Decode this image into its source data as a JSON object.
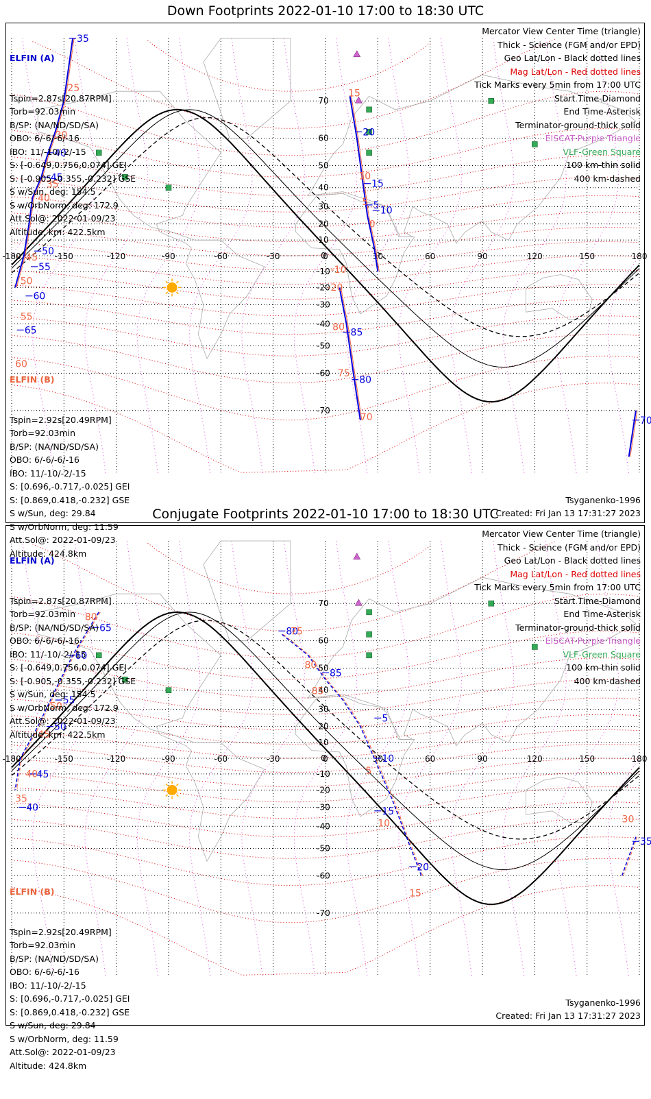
{
  "panels": [
    {
      "title": "Down Footprints 2022-01-10 17:00 to 18:30 UTC",
      "elfin_a": {
        "header": "ELFIN (A)",
        "lines": [
          "Tspin=2.87s[20.87RPM]",
          "Torb=92.03min",
          "B/SP: (NA/ND/SD/SA)",
          "OBO: 6/-6/-6/-16",
          "IBO: 11/-10/-2/-15",
          "S: [-0.649,0.756,0.074] GEI",
          "S: [-0.905,-0.355,-0.232] GSE",
          "S w/Sun, deg: 154.5",
          "S w/OrbNorm, deg: 172.9",
          "Att.Sol@: 2022-01-09/23",
          "Altitude, km: 422.5km"
        ]
      },
      "elfin_b": {
        "header": "ELFIN (B)",
        "lines": [
          "Tspin=2.92s[20.49RPM]",
          "Torb=92.03min",
          "B/SP: (NA/ND/SD/SA)",
          "OBO: 6/-6/-6/-16",
          "IBO: 11/-10/-2/-15",
          "S: [0.696,-0.717,-0.025] GEI",
          "S: [0.869,0.418,-0.232] GSE",
          "S w/Sun, deg: 29.84",
          "S w/OrbNorm, deg: 11.59",
          "Att.Sol@: 2022-01-09/23",
          "Altitude: 424.8km"
        ]
      },
      "footer_left": "Tsyganenko-1996",
      "footer_right": "Created: Fri Jan 13 17:31:27 2023"
    },
    {
      "title": "Conjugate Footprints 2022-01-10 17:00 to 18:30 UTC",
      "elfin_a": {
        "header": "ELFIN (A)",
        "lines": [
          "Tspin=2.87s[20.87RPM]",
          "Torb=92.03min",
          "B/SP: (NA/ND/SD/SA)",
          "OBO: 6/-6/-6/-16",
          "IBO: 11/-10/-2/-15",
          "S: [-0.649,0.756,0.074] GEI",
          "S: [-0.905,-0.355,-0.232] GSE",
          "S w/Sun, deg: 154.5",
          "S w/OrbNorm, deg: 172.9",
          "Att.Sol@: 2022-01-09/23",
          "Altitude, km: 422.5km"
        ]
      },
      "elfin_b": {
        "header": "ELFIN (B)",
        "lines": [
          "Tspin=2.92s[20.49RPM]",
          "Torb=92.03min",
          "B/SP: (NA/ND/SD/SA)",
          "OBO: 6/-6/-6/-16",
          "IBO: 11/-10/-2/-15",
          "S: [0.696,-0.717,-0.025] GEI",
          "S: [0.869,0.418,-0.232] GSE",
          "S w/Sun, deg: 29.84",
          "S w/OrbNorm, deg: 11.59",
          "Att.Sol@: 2022-01-09/23",
          "Altitude: 424.8km"
        ]
      },
      "footer_left": "Tsyganenko-1996",
      "footer_right": "Created: Fri Jan 13 17:31:27 2023"
    }
  ],
  "legend": [
    {
      "text": "Mercator View Center Time (triangle)",
      "color": "#000000"
    },
    {
      "text": "Thick - Science (FGM and/or EPD)",
      "color": "#000000"
    },
    {
      "text": "Geo Lat/Lon - Black dotted lines",
      "color": "#000000"
    },
    {
      "text": "Mag Lat/Lon - Red dotted lines",
      "color": "#dd0000"
    },
    {
      "text": "Tick Marks every 5min from 17:00 UTC",
      "color": "#000000"
    },
    {
      "text": "Start Time-Diamond",
      "color": "#000000"
    },
    {
      "text": "End Time-Asterisk",
      "color": "#000000"
    },
    {
      "text": "Terminator-ground-thick solid",
      "color": "#000000"
    },
    {
      "text": "EISCAT-Purple Triangle",
      "color": "#cc66cc"
    },
    {
      "text": "VLF-Green Square",
      "color": "#33aa55"
    },
    {
      "text": "100 km-thin solid",
      "color": "#000000"
    },
    {
      "text": "400 km-dashed",
      "color": "#000000"
    }
  ],
  "colors": {
    "elfin_a": "#0000dd",
    "elfin_b": "#ee6644",
    "mag_grid": "#dd0000",
    "eiscat": "#cc66cc",
    "vlf": "#33aa55",
    "geo_grid": "#000000",
    "sun": "#ffaa00"
  },
  "chart_data": [
    {
      "type": "line",
      "projection": "mercator",
      "x_ticks": [
        -180,
        -150,
        -120,
        -90,
        -60,
        -30,
        0,
        30,
        60,
        90,
        120,
        150,
        180
      ],
      "y_ticks": [
        -70,
        -60,
        -50,
        -40,
        -30,
        -20,
        -10,
        0,
        10,
        20,
        30,
        40,
        50,
        60,
        70
      ],
      "xlim": [
        -180,
        180
      ],
      "ylim": [
        -80,
        80
      ],
      "series": [
        {
          "name": "ELFIN (A)",
          "points": [
            [
              -145,
              80
            ],
            [
              -150,
              70
            ],
            [
              -155,
              62
            ],
            [
              -160,
              53
            ],
            [
              -163,
              45
            ],
            [
              -168,
              35
            ],
            [
              -170,
              20
            ],
            [
              -173,
              0
            ],
            [
              -178,
              -20
            ]
          ],
          "ticks": [
            {
              "label": "35",
              "lon": -145,
              "lat": 80
            },
            {
              "label": "40",
              "lon": -158,
              "lat": 55
            },
            {
              "label": "45",
              "lon": -160,
              "lat": 45
            },
            {
              "label": "50",
              "lon": -165,
              "lat": 3
            },
            {
              "label": "55",
              "lon": -167,
              "lat": -7
            },
            {
              "label": "60",
              "lon": -170,
              "lat": -25
            },
            {
              "label": "65",
              "lon": -175,
              "lat": -43
            }
          ]
        },
        {
          "name": "ELFIN (B)",
          "points": [
            [
              14,
              71
            ],
            [
              18,
              60
            ],
            [
              21,
              45
            ],
            [
              24,
              25
            ],
            [
              28,
              5
            ],
            [
              30,
              -10
            ]
          ],
          "ticks": [
            {
              "label": "5",
              "lon": 25,
              "lat": 31
            },
            {
              "label": "10",
              "lon": 29,
              "lat": 28
            },
            {
              "label": "15",
              "lon": 24,
              "lat": 42
            },
            {
              "label": "20",
              "lon": 19,
              "lat": 62
            }
          ]
        },
        {
          "name": "ELFIN (A) south",
          "points": [
            [
              8,
              -20
            ],
            [
              12,
              -40
            ],
            [
              16,
              -60
            ],
            [
              20,
              -72
            ]
          ],
          "ticks": [
            {
              "label": "85",
              "lon": 12,
              "lat": -44
            },
            {
              "label": "80",
              "lon": 17,
              "lat": -62
            }
          ]
        },
        {
          "name": "ELFIN (B) east",
          "points": [
            [
              174,
              -78
            ],
            [
              178,
              -70
            ]
          ],
          "ticks": [
            {
              "label": "70",
              "lon": 178,
              "lat": -72
            }
          ]
        }
      ],
      "mag_labels": [
        {
          "label": "15",
          "lon": 13,
          "lat": 71
        },
        {
          "label": "10",
          "lon": 19,
          "lat": 44
        },
        {
          "label": "5",
          "lon": 21,
          "lat": 31
        },
        {
          "label": "0",
          "lon": 25,
          "lat": 18
        },
        {
          "label": "-10",
          "lon": 3,
          "lat": -11
        },
        {
          "label": "-20",
          "lon": 1,
          "lat": -22
        },
        {
          "label": "80",
          "lon": 4,
          "lat": -43
        },
        {
          "label": "75",
          "lon": 7,
          "lat": -61
        },
        {
          "label": "70",
          "lon": 20,
          "lat": -72
        },
        {
          "label": "25",
          "lon": -148,
          "lat": 72
        },
        {
          "label": "30",
          "lon": -155,
          "lat": 60
        },
        {
          "label": "35",
          "lon": -160,
          "lat": 40
        },
        {
          "label": "40",
          "lon": -165,
          "lat": 33
        },
        {
          "label": "45",
          "lon": -172,
          "lat": -3
        },
        {
          "label": "50",
          "lon": -175,
          "lat": -18
        },
        {
          "label": "55",
          "lon": -175,
          "lat": -38
        },
        {
          "label": "60",
          "lon": -178,
          "lat": -58
        }
      ]
    },
    {
      "type": "line",
      "projection": "mercator",
      "x_ticks": [
        -180,
        -150,
        -120,
        -90,
        -60,
        -30,
        0,
        30,
        60,
        90,
        120,
        150,
        180
      ],
      "y_ticks": [
        -70,
        -60,
        -50,
        -40,
        -30,
        -20,
        -10,
        0,
        10,
        20,
        30,
        40,
        50,
        60,
        70
      ],
      "xlim": [
        -180,
        180
      ],
      "ylim": [
        -80,
        80
      ],
      "series": [
        {
          "name": "ELFIN (A)",
          "points": [
            [
              -130,
              68
            ],
            [
              -145,
              55
            ],
            [
              -155,
              40
            ],
            [
              -165,
              20
            ],
            [
              -175,
              0
            ],
            [
              -178,
              -20
            ]
          ],
          "ticks": [
            {
              "label": "65",
              "lon": -132,
              "lat": 64
            },
            {
              "label": "60",
              "lon": -146,
              "lat": 55
            },
            {
              "label": "55",
              "lon": -153,
              "lat": 35
            },
            {
              "label": "50",
              "lon": -158,
              "lat": 20
            },
            {
              "label": "45",
              "lon": -168,
              "lat": -10
            },
            {
              "label": "40",
              "lon": -174,
              "lat": -30
            }
          ]
        },
        {
          "name": "ELFIN (B)",
          "points": [
            [
              -25,
              62
            ],
            [
              -10,
              55
            ],
            [
              0,
              45
            ],
            [
              10,
              35
            ],
            [
              20,
              20
            ],
            [
              28,
              0
            ],
            [
              38,
              -25
            ],
            [
              55,
              -60
            ]
          ],
          "ticks": [
            {
              "label": "80",
              "lon": -25,
              "lat": 63
            },
            {
              "label": "85",
              "lon": 0,
              "lat": 48
            },
            {
              "label": "5",
              "lon": 30,
              "lat": 25
            },
            {
              "label": "10",
              "lon": 30,
              "lat": 0
            },
            {
              "label": "15",
              "lon": 30,
              "lat": -32
            },
            {
              "label": "20",
              "lon": 50,
              "lat": -57
            }
          ]
        },
        {
          "name": "ELFIN (B) east",
          "points": [
            [
              170,
              -60
            ],
            [
              178,
              -45
            ]
          ],
          "ticks": [
            {
              "label": "35",
              "lon": 178,
              "lat": -47
            }
          ]
        }
      ],
      "mag_labels": [
        {
          "label": "80",
          "lon": -138,
          "lat": 66
        },
        {
          "label": "75",
          "lon": -20,
          "lat": 62
        },
        {
          "label": "80",
          "lon": -12,
          "lat": 50
        },
        {
          "label": "85",
          "lon": -8,
          "lat": 38
        },
        {
          "label": "5",
          "lon": 23,
          "lat": -10
        },
        {
          "label": "10",
          "lon": 30,
          "lat": -40
        },
        {
          "label": "15",
          "lon": 48,
          "lat": -66
        },
        {
          "label": "50",
          "lon": -158,
          "lat": 30
        },
        {
          "label": "45",
          "lon": -165,
          "lat": 13
        },
        {
          "label": "40",
          "lon": -172,
          "lat": -12
        },
        {
          "label": "35",
          "lon": -178,
          "lat": -27
        },
        {
          "label": "30",
          "lon": 170,
          "lat": -38
        }
      ]
    }
  ]
}
